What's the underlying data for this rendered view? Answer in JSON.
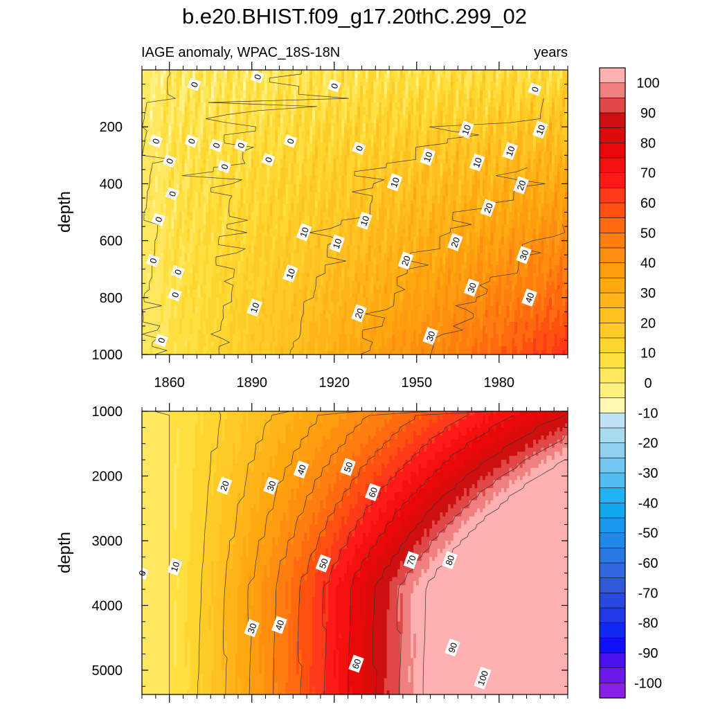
{
  "chart_data": [
    {
      "type": "heatmap",
      "title": "b.e20.BHIST.f09_g17.20thC.299_02",
      "subtitle_left": "IAGE anomaly, WPAC_18S-18N",
      "subtitle_right": "years",
      "ylabel": "depth",
      "xlabel": "",
      "xlim": [
        1850,
        2005
      ],
      "ylim": [
        0,
        1000
      ],
      "y_reversed": true,
      "x_ticks": [
        1860,
        1890,
        1920,
        1950,
        1980
      ],
      "y_ticks": [
        200,
        400,
        600,
        800,
        1000
      ],
      "contour_interval": 5,
      "contour_labels": [
        {
          "value": "0",
          "x": 1869,
          "y": 51
        },
        {
          "value": "0",
          "x": 1892,
          "y": 24
        },
        {
          "value": "0",
          "x": 1920,
          "y": 56
        },
        {
          "value": "0",
          "x": 1993,
          "y": 68
        },
        {
          "value": "0",
          "x": 1855,
          "y": 250
        },
        {
          "value": "0",
          "x": 1868,
          "y": 250
        },
        {
          "value": "0",
          "x": 1877,
          "y": 265
        },
        {
          "value": "0",
          "x": 1886,
          "y": 265
        },
        {
          "value": "0",
          "x": 1904,
          "y": 250
        },
        {
          "value": "0",
          "x": 1929,
          "y": 275
        },
        {
          "value": "0",
          "x": 1860,
          "y": 320
        },
        {
          "value": "0",
          "x": 1880,
          "y": 340
        },
        {
          "value": "0",
          "x": 1896,
          "y": 315
        },
        {
          "value": "0",
          "x": 1861,
          "y": 435
        },
        {
          "value": "0",
          "x": 1856,
          "y": 525
        },
        {
          "value": "0",
          "x": 1854,
          "y": 670
        },
        {
          "value": "0",
          "x": 1863,
          "y": 710
        },
        {
          "value": "0",
          "x": 1862,
          "y": 790
        },
        {
          "value": "0",
          "x": 1857,
          "y": 950
        },
        {
          "value": "10",
          "x": 1904,
          "y": 715
        },
        {
          "value": "10",
          "x": 1891,
          "y": 835
        },
        {
          "value": "10",
          "x": 1909,
          "y": 570
        },
        {
          "value": "10",
          "x": 1921,
          "y": 610
        },
        {
          "value": "10",
          "x": 1931,
          "y": 530
        },
        {
          "value": "10",
          "x": 1942,
          "y": 395
        },
        {
          "value": "10",
          "x": 1954,
          "y": 305
        },
        {
          "value": "10",
          "x": 1968,
          "y": 210
        },
        {
          "value": "10",
          "x": 1972,
          "y": 325
        },
        {
          "value": "10",
          "x": 1984,
          "y": 285
        },
        {
          "value": "10",
          "x": 1995,
          "y": 210
        },
        {
          "value": "20",
          "x": 1929,
          "y": 855
        },
        {
          "value": "20",
          "x": 1946,
          "y": 670
        },
        {
          "value": "20",
          "x": 1964,
          "y": 605
        },
        {
          "value": "20",
          "x": 1976,
          "y": 485
        },
        {
          "value": "20",
          "x": 1988,
          "y": 405
        },
        {
          "value": "30",
          "x": 1955,
          "y": 935
        },
        {
          "value": "30",
          "x": 1970,
          "y": 765
        },
        {
          "value": "30",
          "x": 1989,
          "y": 650
        },
        {
          "value": "40",
          "x": 1991,
          "y": 800
        }
      ]
    },
    {
      "type": "heatmap",
      "ylabel": "depth",
      "xlabel": "",
      "xlim": [
        1850,
        2005
      ],
      "ylim": [
        1000,
        5375
      ],
      "y_reversed": true,
      "y_ticks": [
        1000,
        2000,
        3000,
        4000,
        5000
      ],
      "contour_interval": 5,
      "contour_labels": [
        {
          "value": "0",
          "x": 1850,
          "y": 3500
        },
        {
          "value": "10",
          "x": 1862,
          "y": 3400
        },
        {
          "value": "20",
          "x": 1880,
          "y": 2150
        },
        {
          "value": "30",
          "x": 1897,
          "y": 2150
        },
        {
          "value": "30",
          "x": 1890,
          "y": 4350
        },
        {
          "value": "40",
          "x": 1908,
          "y": 1900
        },
        {
          "value": "40",
          "x": 1900,
          "y": 4300
        },
        {
          "value": "50",
          "x": 1925,
          "y": 1860
        },
        {
          "value": "50",
          "x": 1916,
          "y": 3350
        },
        {
          "value": "60",
          "x": 1934,
          "y": 2250
        },
        {
          "value": "60",
          "x": 1928,
          "y": 4900
        },
        {
          "value": "70",
          "x": 1948,
          "y": 3300
        },
        {
          "value": "80",
          "x": 1962,
          "y": 3300
        },
        {
          "value": "90",
          "x": 1963,
          "y": 4650
        },
        {
          "value": "100",
          "x": 1974,
          "y": 5120
        }
      ]
    }
  ],
  "colorbar": {
    "labels": [
      "100",
      "90",
      "80",
      "70",
      "60",
      "50",
      "40",
      "30",
      "20",
      "10",
      "0",
      "-10",
      "-20",
      "-30",
      "-40",
      "-50",
      "-60",
      "-70",
      "-80",
      "-90",
      "-100"
    ],
    "colors": [
      "#ffb0b0",
      "#f08080",
      "#e04848",
      "#cc1010",
      "#dd0a0a",
      "#e80808",
      "#f51010",
      "#ff1a1a",
      "#ff3a18",
      "#ff5010",
      "#ff6a10",
      "#ff7e10",
      "#ff8e10",
      "#ff9c10",
      "#ffa810",
      "#ffb41a",
      "#ffc020",
      "#ffcb28",
      "#ffd630",
      "#ffe040",
      "#ffe860",
      "#fff080",
      "#fff8b0",
      "#c0e2f4",
      "#a8daf0",
      "#90d0ee",
      "#72c8ee",
      "#52bef0",
      "#20b4f0",
      "#10a8ee",
      "#1898ee",
      "#2088ea",
      "#2878e6",
      "#3068e0",
      "#3058d8",
      "#2848e0",
      "#2038e8",
      "#1028f0",
      "#1010f8",
      "#4a10f0",
      "#6a18e8",
      "#8a20e8"
    ]
  },
  "colors": {
    "zero_band": "#fff8b0",
    "negative_band": "#c4e4f4",
    "contour_line": "#333333"
  }
}
